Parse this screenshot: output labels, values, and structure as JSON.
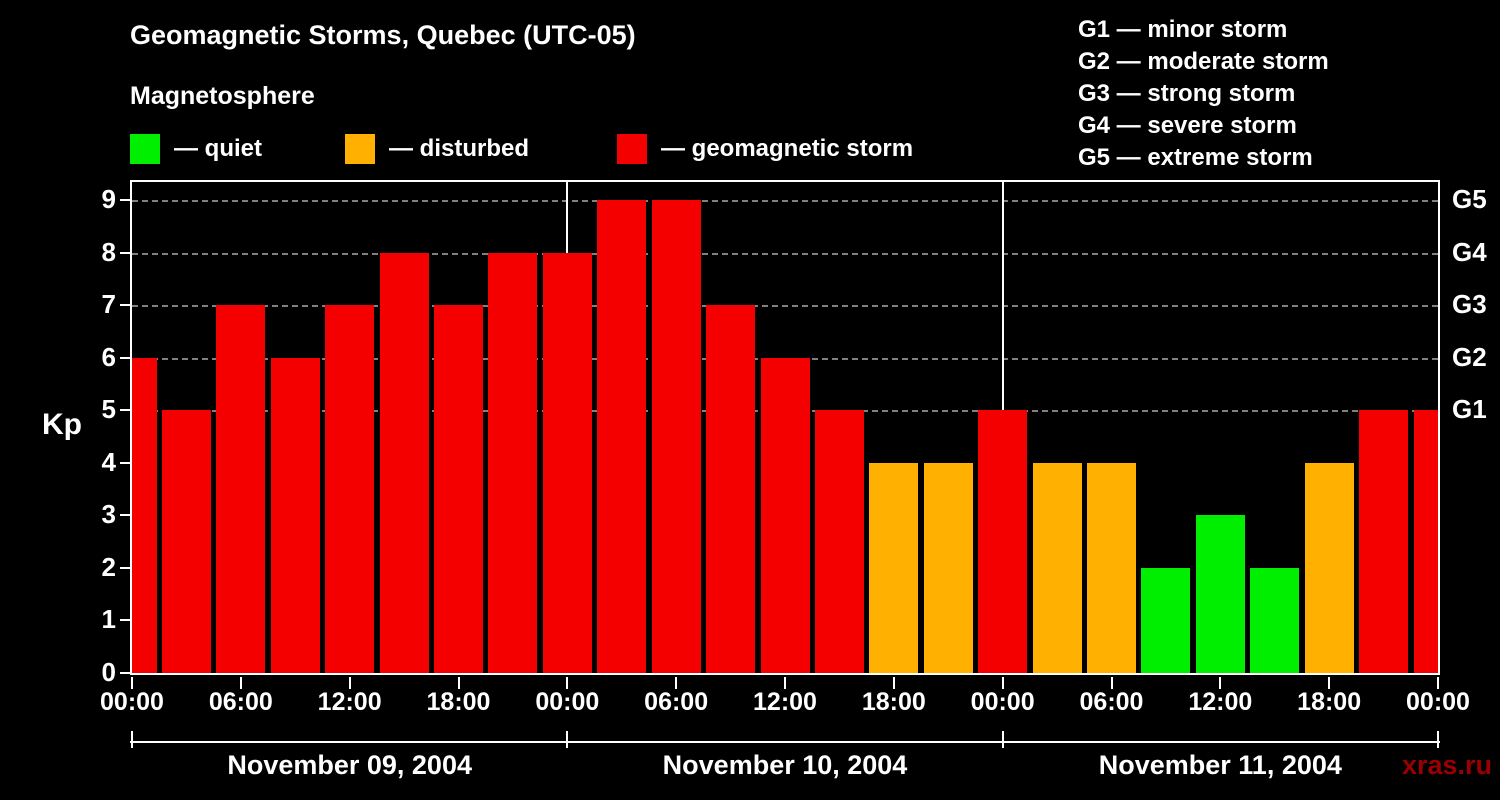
{
  "title": "Geomagnetic Storms, Quebec (UTC-05)",
  "subtitle": "Magnetosphere",
  "watermark": "xras.ru",
  "legend": [
    {
      "key": "quiet",
      "label": "— quiet"
    },
    {
      "key": "disturbed",
      "label": "— disturbed"
    },
    {
      "key": "storm",
      "label": "— geomagnetic storm"
    }
  ],
  "g_scale": [
    {
      "label": "G1 — minor storm"
    },
    {
      "label": "G2 — moderate storm"
    },
    {
      "label": "G3 — strong storm"
    },
    {
      "label": "G4 — severe storm"
    },
    {
      "label": "G5 — extreme storm"
    }
  ],
  "colors": {
    "quiet": "#00ee00",
    "disturbed": "#ffb000",
    "storm": "#f40000",
    "background": "#000000",
    "axis": "#ffffff",
    "watermark": "#9a0000"
  },
  "chart_data": {
    "type": "bar",
    "title": "Geomagnetic Storms, Quebec (UTC-05)",
    "ylabel": "Kp",
    "ylim": [
      0,
      9
    ],
    "y_ticks": [
      0,
      1,
      2,
      3,
      4,
      5,
      6,
      7,
      8,
      9
    ],
    "right_axis": [
      {
        "label": "G1",
        "kp": 5
      },
      {
        "label": "G2",
        "kp": 6
      },
      {
        "label": "G3",
        "kp": 7
      },
      {
        "label": "G4",
        "kp": 8
      },
      {
        "label": "G5",
        "kp": 9
      }
    ],
    "grid": "dashed horizontal at G1–G5 levels",
    "legend_position": "top",
    "x_span_hours": 72,
    "interval_hours": 3,
    "x_tick_hours": [
      0,
      6,
      12,
      18,
      24,
      30,
      36,
      42,
      48,
      54,
      60,
      66,
      72
    ],
    "x_tick_labels": [
      "00:00",
      "06:00",
      "12:00",
      "18:00",
      "00:00",
      "06:00",
      "12:00",
      "18:00",
      "00:00",
      "06:00",
      "12:00",
      "18:00",
      "00:00"
    ],
    "day_boundaries_hours": [
      24,
      48
    ],
    "bracket_tick_hours": [
      0,
      24,
      48,
      72
    ],
    "days": [
      {
        "label": "November 09, 2004",
        "start_hour": 0,
        "end_hour": 24
      },
      {
        "label": "November 10, 2004",
        "start_hour": 24,
        "end_hour": 48
      },
      {
        "label": "November 11, 2004",
        "start_hour": 48,
        "end_hour": 72
      }
    ],
    "points": [
      {
        "hour": 0,
        "kp": 6,
        "status": "storm"
      },
      {
        "hour": 3,
        "kp": 5,
        "status": "storm"
      },
      {
        "hour": 6,
        "kp": 7,
        "status": "storm"
      },
      {
        "hour": 9,
        "kp": 6,
        "status": "storm"
      },
      {
        "hour": 12,
        "kp": 7,
        "status": "storm"
      },
      {
        "hour": 15,
        "kp": 8,
        "status": "storm"
      },
      {
        "hour": 18,
        "kp": 7,
        "status": "storm"
      },
      {
        "hour": 21,
        "kp": 8,
        "status": "storm"
      },
      {
        "hour": 24,
        "kp": 8,
        "status": "storm"
      },
      {
        "hour": 27,
        "kp": 9,
        "status": "storm"
      },
      {
        "hour": 30,
        "kp": 9,
        "status": "storm"
      },
      {
        "hour": 33,
        "kp": 7,
        "status": "storm"
      },
      {
        "hour": 36,
        "kp": 6,
        "status": "storm"
      },
      {
        "hour": 39,
        "kp": 5,
        "status": "storm"
      },
      {
        "hour": 42,
        "kp": 4,
        "status": "disturbed"
      },
      {
        "hour": 45,
        "kp": 4,
        "status": "disturbed"
      },
      {
        "hour": 48,
        "kp": 5,
        "status": "storm"
      },
      {
        "hour": 51,
        "kp": 4,
        "status": "disturbed"
      },
      {
        "hour": 54,
        "kp": 4,
        "status": "disturbed"
      },
      {
        "hour": 57,
        "kp": 2,
        "status": "quiet"
      },
      {
        "hour": 60,
        "kp": 3,
        "status": "quiet"
      },
      {
        "hour": 63,
        "kp": 2,
        "status": "quiet"
      },
      {
        "hour": 66,
        "kp": 4,
        "status": "disturbed"
      },
      {
        "hour": 69,
        "kp": 5,
        "status": "storm"
      },
      {
        "hour": 72,
        "kp": 5,
        "status": "storm"
      }
    ]
  }
}
